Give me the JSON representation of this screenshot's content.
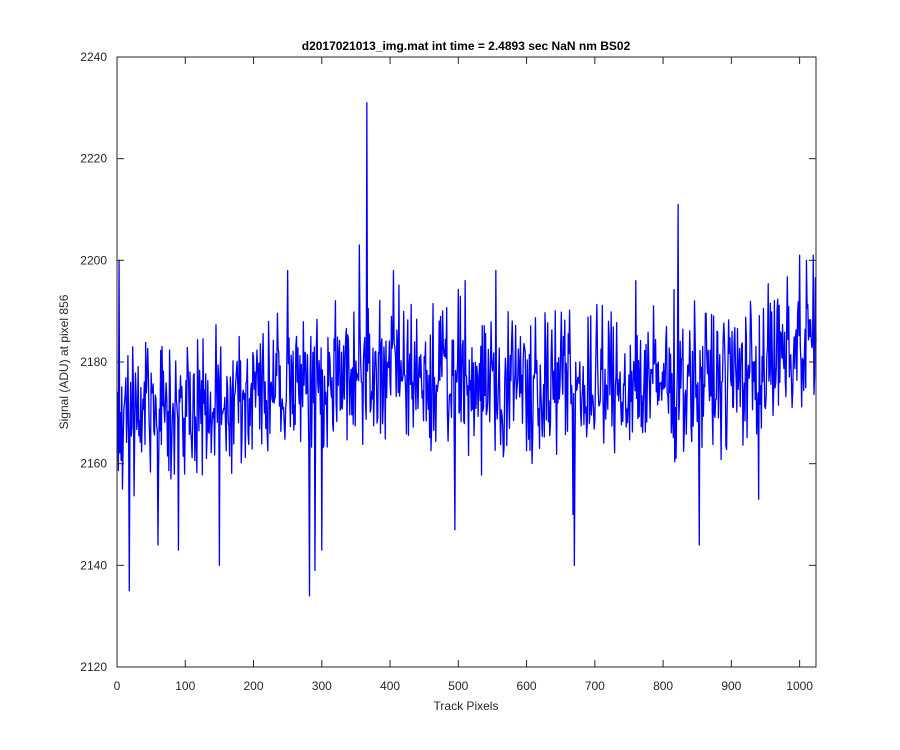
{
  "chart_data": {
    "type": "line",
    "title": "d2017021013_img.mat int time = 2.4893 sec  NaN nm BS02",
    "xlabel": "Track Pixels",
    "ylabel": "Signal (ADU) at pixel 856",
    "xlim": [
      0,
      1024
    ],
    "ylim": [
      2120,
      2240
    ],
    "xticks": [
      0,
      100,
      200,
      300,
      400,
      500,
      600,
      700,
      800,
      900,
      1000
    ],
    "yticks": [
      2120,
      2140,
      2160,
      2180,
      2200,
      2220,
      2240
    ],
    "grid": false,
    "line_color": "#0000ff",
    "series": [
      {
        "x_start": 1,
        "x_step": 1,
        "baseline_anchors": [
          [
            1,
            2172
          ],
          [
            100,
            2171
          ],
          [
            200,
            2174
          ],
          [
            300,
            2176
          ],
          [
            400,
            2178
          ],
          [
            500,
            2176
          ],
          [
            600,
            2176
          ],
          [
            700,
            2175
          ],
          [
            800,
            2176
          ],
          [
            900,
            2177
          ],
          [
            1000,
            2182
          ],
          [
            1024,
            2184
          ]
        ],
        "noise_half_range": 13,
        "noise_seed": 856,
        "notable_points": [
          [
            3,
            2200
          ],
          [
            8,
            2155
          ],
          [
            18,
            2135
          ],
          [
            60,
            2144
          ],
          [
            90,
            2143
          ],
          [
            150,
            2140
          ],
          [
            250,
            2198
          ],
          [
            282,
            2134
          ],
          [
            290,
            2139
          ],
          [
            300,
            2143
          ],
          [
            355,
            2203
          ],
          [
            366,
            2231
          ],
          [
            405,
            2198
          ],
          [
            495,
            2147
          ],
          [
            510,
            2196
          ],
          [
            555,
            2198
          ],
          [
            668,
            2150
          ],
          [
            670,
            2140
          ],
          [
            760,
            2196
          ],
          [
            822,
            2211
          ],
          [
            853,
            2144
          ],
          [
            940,
            2153
          ],
          [
            1000,
            2201
          ],
          [
            1010,
            2200
          ],
          [
            1020,
            2201
          ]
        ]
      }
    ]
  }
}
